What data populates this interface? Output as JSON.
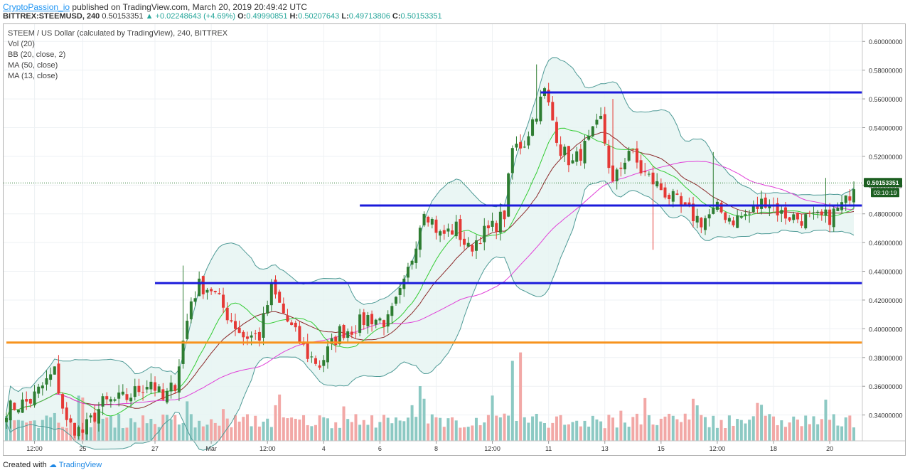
{
  "header": {
    "author": "CryptoPassion_io",
    "published_text": "published on TradingView.com, March 20, 2019 20:49:42 UTC",
    "symbol": "BITTREX:STEEMUSD, 240",
    "last": "0.50153351",
    "change": "+0.02248643 (+4.69%)",
    "o_label": "O:",
    "o": "0.49990851",
    "h_label": "H:",
    "h": "0.50207643",
    "l_label": "L:",
    "l": "0.49713806",
    "c_label": "C:",
    "c": "0.50153351"
  },
  "legend": {
    "title": "STEEM / US Dollar (calculated by TradingView), 240, BITTREX",
    "vol": "Vol (20)",
    "bb": "BB (20, close, 2)",
    "ma50": "MA (50, close)",
    "ma13": "MA (13, close)"
  },
  "footer": {
    "created_with": "Created with",
    "brand": "TradingView"
  },
  "colors": {
    "up": "#2e7d32",
    "down": "#e53935",
    "vol_up": "#8cc9c3",
    "vol_down": "#f2a8a6",
    "bb": "#4e9a96",
    "bb_fill": "#e6f4f2",
    "ma50": "#e040d8",
    "ma13": "#33cc33",
    "mid": "#8b2a2a",
    "hline": "#1a1adb",
    "support": "#f7931e",
    "price_label_bg": "#1b5e20"
  },
  "chart_data": {
    "type": "candlestick",
    "ylim": [
      0.322,
      0.612
    ],
    "y_ticks": [
      "0.60000000",
      "0.58000000",
      "0.56000000",
      "0.54000000",
      "0.52000000",
      "0.50000000",
      "0.48000000",
      "0.46000000",
      "0.44000000",
      "0.42000000",
      "0.40000000",
      "0.38000000",
      "0.36000000",
      "0.34000000"
    ],
    "y_tick_values": [
      0.6,
      0.58,
      0.56,
      0.54,
      0.52,
      0.5,
      0.48,
      0.46,
      0.44,
      0.42,
      0.4,
      0.38,
      0.36,
      0.34
    ],
    "x_labels": [
      "12:00",
      "25",
      "27",
      "Mar",
      "12:00",
      "4",
      "6",
      "8",
      "12:00",
      "11",
      "13",
      "15",
      "12:00",
      "18",
      "20"
    ],
    "x_label_bar_index": [
      7,
      19,
      37,
      51,
      65,
      79,
      93,
      107,
      121,
      135,
      149,
      163,
      177,
      191,
      205
    ],
    "current_price_label": "0.50153351",
    "countdown_label": "03:10:19",
    "horizontal_lines": [
      {
        "price": 0.5645,
        "from_bar": 133,
        "to_bar": 213,
        "color": "#1a1adb"
      },
      {
        "price": 0.4858,
        "from_bar": 88,
        "to_bar": 213,
        "color": "#1a1adb"
      },
      {
        "price": 0.4318,
        "from_bar": 37,
        "to_bar": 213,
        "color": "#1a1adb"
      },
      {
        "price": 0.3904,
        "from_bar": 0,
        "to_bar": 213,
        "color": "#f7931e"
      }
    ],
    "close_anchors": [
      [
        0,
        0.344
      ],
      [
        6,
        0.35
      ],
      [
        12,
        0.37
      ],
      [
        15,
        0.334
      ],
      [
        19,
        0.328
      ],
      [
        24,
        0.348
      ],
      [
        30,
        0.352
      ],
      [
        36,
        0.364
      ],
      [
        39,
        0.35
      ],
      [
        42,
        0.362
      ],
      [
        46,
        0.42
      ],
      [
        48,
        0.43
      ],
      [
        51,
        0.428
      ],
      [
        55,
        0.41
      ],
      [
        59,
        0.395
      ],
      [
        63,
        0.395
      ],
      [
        66,
        0.428
      ],
      [
        70,
        0.405
      ],
      [
        75,
        0.382
      ],
      [
        78,
        0.375
      ],
      [
        83,
        0.398
      ],
      [
        86,
        0.4
      ],
      [
        90,
        0.408
      ],
      [
        95,
        0.405
      ],
      [
        99,
        0.43
      ],
      [
        101,
        0.45
      ],
      [
        104,
        0.485
      ],
      [
        108,
        0.465
      ],
      [
        112,
        0.47
      ],
      [
        115,
        0.455
      ],
      [
        118,
        0.465
      ],
      [
        121,
        0.47
      ],
      [
        124,
        0.48
      ],
      [
        126,
        0.525
      ],
      [
        129,
        0.53
      ],
      [
        131,
        0.545
      ],
      [
        134,
        0.565
      ],
      [
        138,
        0.525
      ],
      [
        141,
        0.515
      ],
      [
        145,
        0.53
      ],
      [
        148,
        0.545
      ],
      [
        151,
        0.5
      ],
      [
        155,
        0.525
      ],
      [
        158,
        0.51
      ],
      [
        162,
        0.5
      ],
      [
        166,
        0.49
      ],
      [
        169,
        0.482
      ],
      [
        173,
        0.475
      ],
      [
        177,
        0.483
      ],
      [
        181,
        0.476
      ],
      [
        185,
        0.48
      ],
      [
        189,
        0.49
      ],
      [
        193,
        0.48
      ],
      [
        197,
        0.477
      ],
      [
        201,
        0.476
      ],
      [
        205,
        0.478
      ],
      [
        209,
        0.488
      ],
      [
        211,
        0.5015
      ]
    ],
    "spikes": [
      [
        44,
        0.444
      ],
      [
        132,
        0.584
      ],
      [
        151,
        0.56
      ],
      [
        176,
        0.523
      ],
      [
        204,
        0.505
      ],
      [
        161,
        0.455
      ]
    ],
    "volume_bars": {
      "count": 212,
      "max_label_ref": 1.0
    }
  }
}
